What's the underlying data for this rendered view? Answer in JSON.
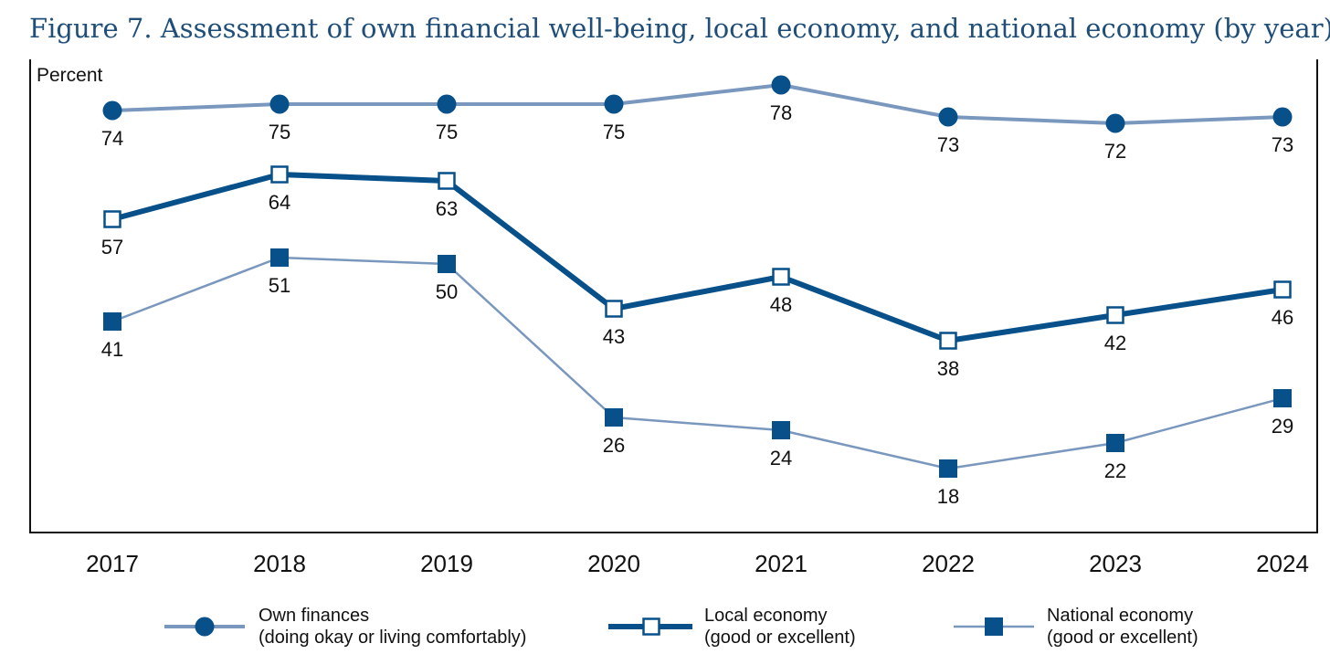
{
  "colors": {
    "dark_blue": "#07508a",
    "light_blue": "#7a97be",
    "title_blue": "#1f4e79",
    "axis": "#111111"
  },
  "chart_data": {
    "type": "line",
    "title": "Figure 7. Assessment of own financial well-being, local economy, and national economy (by year)",
    "ylabel": "Percent",
    "xlabel": "",
    "ylim": [
      8,
      82
    ],
    "grid": false,
    "x": [
      "2017",
      "2018",
      "2019",
      "2020",
      "2021",
      "2022",
      "2023",
      "2024"
    ],
    "legend_position": "bottom",
    "series": [
      {
        "key": "own",
        "name": [
          "Own finances",
          "(doing okay or living comfortably)"
        ],
        "values": [
          74,
          75,
          75,
          75,
          78,
          73,
          72,
          73
        ],
        "marker": "filled-circle",
        "line_color": "#7a97be",
        "marker_color": "#07508a"
      },
      {
        "key": "local",
        "name": [
          "Local economy",
          "(good or excellent)"
        ],
        "values": [
          57,
          64,
          63,
          43,
          48,
          38,
          42,
          46
        ],
        "marker": "open-square",
        "line_color": "#07508a",
        "marker_color": "#07508a"
      },
      {
        "key": "national",
        "name": [
          "National economy",
          "(good or excellent)"
        ],
        "values": [
          41,
          51,
          50,
          26,
          24,
          18,
          22,
          29
        ],
        "marker": "filled-square",
        "line_color": "#7a97be",
        "marker_color": "#07508a"
      }
    ]
  }
}
